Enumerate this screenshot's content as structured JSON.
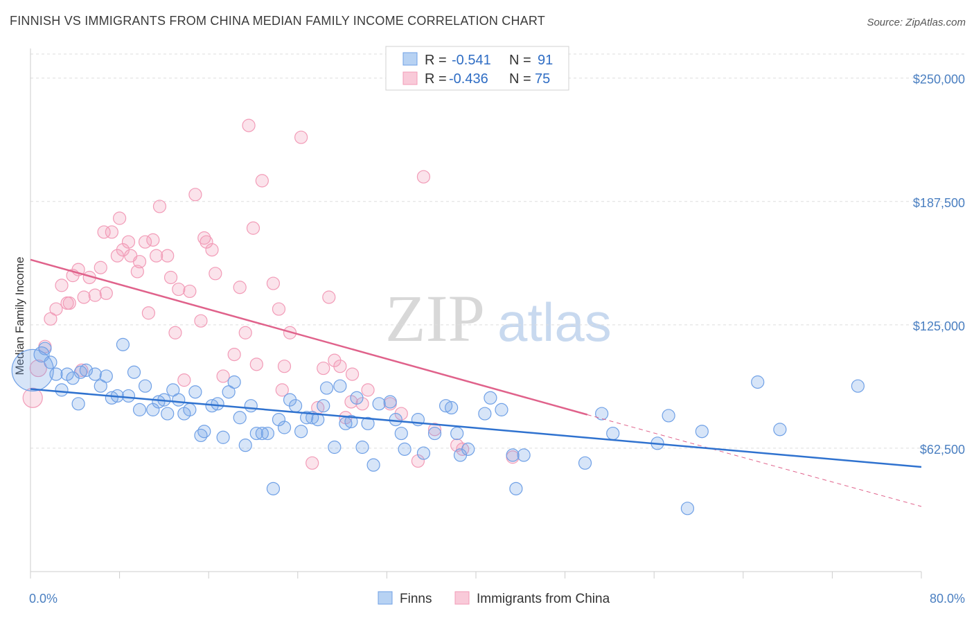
{
  "title": "FINNISH VS IMMIGRANTS FROM CHINA MEDIAN FAMILY INCOME CORRELATION CHART",
  "source": "Source: ZipAtlas.com",
  "watermark": {
    "zip": "ZIP",
    "atlas": "atlas"
  },
  "colors": {
    "finns": "#6fa0e6",
    "finns_line": "#2f72cf",
    "china": "#f29bb7",
    "china_line": "#e0628b",
    "axis_text": "#4a7fc1",
    "grid": "#dddddd"
  },
  "legend": {
    "finns": {
      "r_label": "R =",
      "r_value": "-0.541",
      "n_label": "N =",
      "n_value": "91"
    },
    "china": {
      "r_label": "R =",
      "r_value": "-0.436",
      "n_label": "N =",
      "n_value": "75"
    }
  },
  "chart_data": {
    "type": "scatter",
    "title": "FINNISH VS IMMIGRANTS FROM CHINA MEDIAN FAMILY INCOME CORRELATION CHART",
    "xlabel": "",
    "ylabel": "Median Family Income",
    "xlim": [
      0,
      80
    ],
    "ylim": [
      0,
      265000
    ],
    "x_tick_labels": [
      "0.0%",
      "80.0%"
    ],
    "y_ticks": [
      62500,
      125000,
      187500,
      250000
    ],
    "y_tick_labels": [
      "$62,500",
      "$125,000",
      "$187,500",
      "$250,000"
    ],
    "legend_position": "top-center",
    "series": [
      {
        "name": "Finns",
        "trend": {
          "x0": 0,
          "y0": 92500,
          "x1": 80,
          "y1": 53000
        },
        "points": [
          [
            0.2,
            102000,
            30
          ],
          [
            1.0,
            110000,
            11
          ],
          [
            1.3,
            113000,
            9
          ],
          [
            1.8,
            106000,
            9
          ],
          [
            2.3,
            100000,
            9
          ],
          [
            2.8,
            92000,
            9
          ],
          [
            3.3,
            100000,
            9
          ],
          [
            3.8,
            98000,
            9
          ],
          [
            4.3,
            85000,
            9
          ],
          [
            4.5,
            101000,
            9
          ],
          [
            5.0,
            102000,
            9
          ],
          [
            5.8,
            100000,
            9
          ],
          [
            6.3,
            94000,
            9
          ],
          [
            6.8,
            99000,
            9
          ],
          [
            7.3,
            88000,
            9
          ],
          [
            7.8,
            89000,
            9
          ],
          [
            8.3,
            115000,
            9
          ],
          [
            8.8,
            89000,
            9
          ],
          [
            9.3,
            101000,
            9
          ],
          [
            9.8,
            82000,
            9
          ],
          [
            10.3,
            94000,
            9
          ],
          [
            11.0,
            82000,
            9
          ],
          [
            11.5,
            86000,
            9
          ],
          [
            12.0,
            87000,
            9
          ],
          [
            12.3,
            80000,
            9
          ],
          [
            12.8,
            92000,
            9
          ],
          [
            13.3,
            87000,
            9
          ],
          [
            13.8,
            80000,
            9
          ],
          [
            14.3,
            82000,
            9
          ],
          [
            14.8,
            91000,
            9
          ],
          [
            15.3,
            69000,
            9
          ],
          [
            15.6,
            71000,
            9
          ],
          [
            16.3,
            84000,
            9
          ],
          [
            16.8,
            85000,
            9
          ],
          [
            17.3,
            68000,
            9
          ],
          [
            17.8,
            91000,
            9
          ],
          [
            18.3,
            96000,
            9
          ],
          [
            18.8,
            78000,
            9
          ],
          [
            19.3,
            64000,
            9
          ],
          [
            19.8,
            84000,
            9
          ],
          [
            20.3,
            70000,
            9
          ],
          [
            20.8,
            70000,
            9
          ],
          [
            21.3,
            70000,
            9
          ],
          [
            21.8,
            42000,
            9
          ],
          [
            22.3,
            77000,
            9
          ],
          [
            22.8,
            73000,
            9
          ],
          [
            23.3,
            87000,
            9
          ],
          [
            23.8,
            84000,
            9
          ],
          [
            24.3,
            71000,
            9
          ],
          [
            24.8,
            78000,
            9
          ],
          [
            25.3,
            78000,
            9
          ],
          [
            25.8,
            77000,
            9
          ],
          [
            26.3,
            84000,
            9
          ],
          [
            26.6,
            93000,
            9
          ],
          [
            27.3,
            63000,
            9
          ],
          [
            27.8,
            94000,
            9
          ],
          [
            28.3,
            75000,
            9
          ],
          [
            28.8,
            76000,
            9
          ],
          [
            29.3,
            88000,
            9
          ],
          [
            29.8,
            63000,
            9
          ],
          [
            30.3,
            75000,
            9
          ],
          [
            30.8,
            54000,
            9
          ],
          [
            31.3,
            85000,
            9
          ],
          [
            32.3,
            86000,
            9
          ],
          [
            32.8,
            77000,
            9
          ],
          [
            33.3,
            70000,
            9
          ],
          [
            33.6,
            62000,
            9
          ],
          [
            34.8,
            77000,
            9
          ],
          [
            35.3,
            60000,
            9
          ],
          [
            36.3,
            70000,
            9
          ],
          [
            37.3,
            84000,
            9
          ],
          [
            37.8,
            83000,
            9
          ],
          [
            38.3,
            70000,
            9
          ],
          [
            38.6,
            59000,
            9
          ],
          [
            39.3,
            62000,
            9
          ],
          [
            40.8,
            80000,
            9
          ],
          [
            41.3,
            88000,
            9
          ],
          [
            42.3,
            82000,
            9
          ],
          [
            43.3,
            59000,
            9
          ],
          [
            43.6,
            42000,
            9
          ],
          [
            44.3,
            59000,
            9
          ],
          [
            49.8,
            55000,
            9
          ],
          [
            51.3,
            80000,
            9
          ],
          [
            52.3,
            70000,
            9
          ],
          [
            56.3,
            65000,
            9
          ],
          [
            57.3,
            79000,
            9
          ],
          [
            59.0,
            32000,
            9
          ],
          [
            60.3,
            71000,
            9
          ],
          [
            65.3,
            96000,
            9
          ],
          [
            67.3,
            72000,
            9
          ],
          [
            74.3,
            94000,
            9
          ]
        ]
      },
      {
        "name": "Immigrants from China",
        "trend": {
          "x0": 0,
          "y0": 158000,
          "x1": 50,
          "y1": 79500,
          "dash_to_x": 80,
          "dash_to_y": 33000
        },
        "points": [
          [
            0.2,
            88000,
            14
          ],
          [
            0.7,
            103000,
            12
          ],
          [
            1.3,
            114000,
            9
          ],
          [
            1.8,
            128000,
            9
          ],
          [
            2.3,
            133000,
            9
          ],
          [
            2.8,
            145000,
            9
          ],
          [
            3.3,
            136000,
            9
          ],
          [
            3.5,
            136000,
            9
          ],
          [
            3.8,
            150000,
            9
          ],
          [
            4.3,
            153000,
            9
          ],
          [
            4.6,
            102000,
            9
          ],
          [
            4.8,
            139000,
            9
          ],
          [
            5.3,
            149000,
            9
          ],
          [
            5.8,
            140000,
            9
          ],
          [
            6.3,
            154000,
            9
          ],
          [
            6.6,
            172000,
            9
          ],
          [
            6.8,
            141000,
            9
          ],
          [
            7.3,
            172000,
            9
          ],
          [
            7.8,
            160000,
            9
          ],
          [
            8.0,
            179000,
            9
          ],
          [
            8.3,
            163000,
            9
          ],
          [
            8.8,
            167000,
            9
          ],
          [
            9.0,
            160000,
            9
          ],
          [
            9.6,
            152000,
            9
          ],
          [
            9.8,
            157000,
            9
          ],
          [
            10.3,
            167000,
            9
          ],
          [
            10.6,
            131000,
            9
          ],
          [
            11.0,
            168000,
            9
          ],
          [
            11.3,
            160000,
            9
          ],
          [
            11.6,
            185000,
            9
          ],
          [
            12.3,
            160000,
            9
          ],
          [
            12.6,
            149000,
            9
          ],
          [
            13.0,
            121000,
            9
          ],
          [
            13.3,
            143000,
            9
          ],
          [
            13.8,
            97000,
            9
          ],
          [
            14.3,
            142000,
            9
          ],
          [
            14.8,
            191000,
            9
          ],
          [
            15.3,
            127000,
            9
          ],
          [
            15.6,
            169000,
            9
          ],
          [
            15.8,
            167000,
            9
          ],
          [
            16.3,
            163000,
            9
          ],
          [
            16.6,
            151000,
            9
          ],
          [
            17.3,
            99000,
            9
          ],
          [
            18.3,
            110000,
            9
          ],
          [
            18.8,
            144000,
            9
          ],
          [
            19.3,
            121000,
            9
          ],
          [
            19.6,
            226000,
            9
          ],
          [
            20.0,
            174000,
            9
          ],
          [
            20.3,
            105000,
            9
          ],
          [
            20.8,
            198000,
            9
          ],
          [
            21.8,
            146000,
            9
          ],
          [
            22.3,
            133000,
            9
          ],
          [
            22.6,
            92000,
            9
          ],
          [
            22.8,
            104000,
            9
          ],
          [
            23.3,
            121000,
            9
          ],
          [
            24.3,
            220000,
            9
          ],
          [
            25.3,
            55000,
            9
          ],
          [
            25.8,
            83000,
            9
          ],
          [
            26.3,
            103000,
            9
          ],
          [
            26.8,
            139000,
            9
          ],
          [
            27.3,
            107000,
            9
          ],
          [
            27.8,
            104000,
            9
          ],
          [
            28.3,
            78000,
            9
          ],
          [
            28.8,
            86000,
            9
          ],
          [
            28.9,
            100000,
            9
          ],
          [
            29.8,
            85000,
            9
          ],
          [
            30.3,
            92000,
            9
          ],
          [
            32.3,
            85000,
            9
          ],
          [
            33.3,
            80000,
            9
          ],
          [
            34.8,
            56000,
            9
          ],
          [
            35.3,
            200000,
            9
          ],
          [
            36.3,
            72000,
            9
          ],
          [
            38.3,
            64000,
            9
          ],
          [
            38.8,
            62000,
            9
          ],
          [
            43.3,
            58000,
            9
          ]
        ]
      }
    ]
  },
  "bottom_legend": {
    "finns": "Finns",
    "china": "Immigrants from China"
  }
}
